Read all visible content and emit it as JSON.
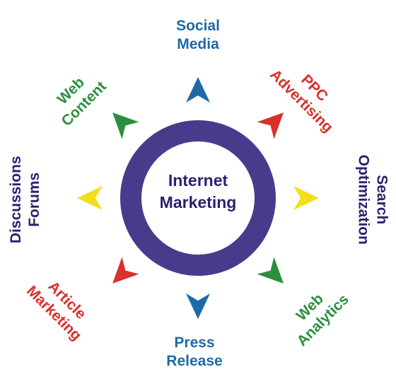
{
  "center": {
    "lines": [
      "Internet",
      "Marketing"
    ]
  },
  "colors": {
    "ring": "#4a3a8c",
    "blue": "#1e6aa8",
    "red": "#d8302c",
    "green": "#2a8f3c",
    "yellow": "#f2df1c",
    "navy": "#2a2270"
  },
  "nodes": [
    {
      "id": "social-media",
      "lines": [
        "Social",
        "Media"
      ],
      "color": "blue"
    },
    {
      "id": "ppc-advertising",
      "lines": [
        "PPC",
        "Advertising"
      ],
      "color": "red"
    },
    {
      "id": "search-optimization",
      "lines": [
        "Search",
        "Optimization"
      ],
      "color": "navy",
      "arrow_color": "yellow"
    },
    {
      "id": "web-analytics",
      "lines": [
        "Web",
        "Analytics"
      ],
      "color": "green"
    },
    {
      "id": "press-release",
      "lines": [
        "Press",
        "Release"
      ],
      "color": "blue"
    },
    {
      "id": "article-marketing",
      "lines": [
        "Article",
        "Marketing"
      ],
      "color": "red"
    },
    {
      "id": "discussions-forums",
      "lines": [
        "Discussions",
        "Forums"
      ],
      "color": "navy",
      "arrow_color": "yellow"
    },
    {
      "id": "web-content",
      "lines": [
        "Web",
        "Content"
      ],
      "color": "green"
    }
  ]
}
